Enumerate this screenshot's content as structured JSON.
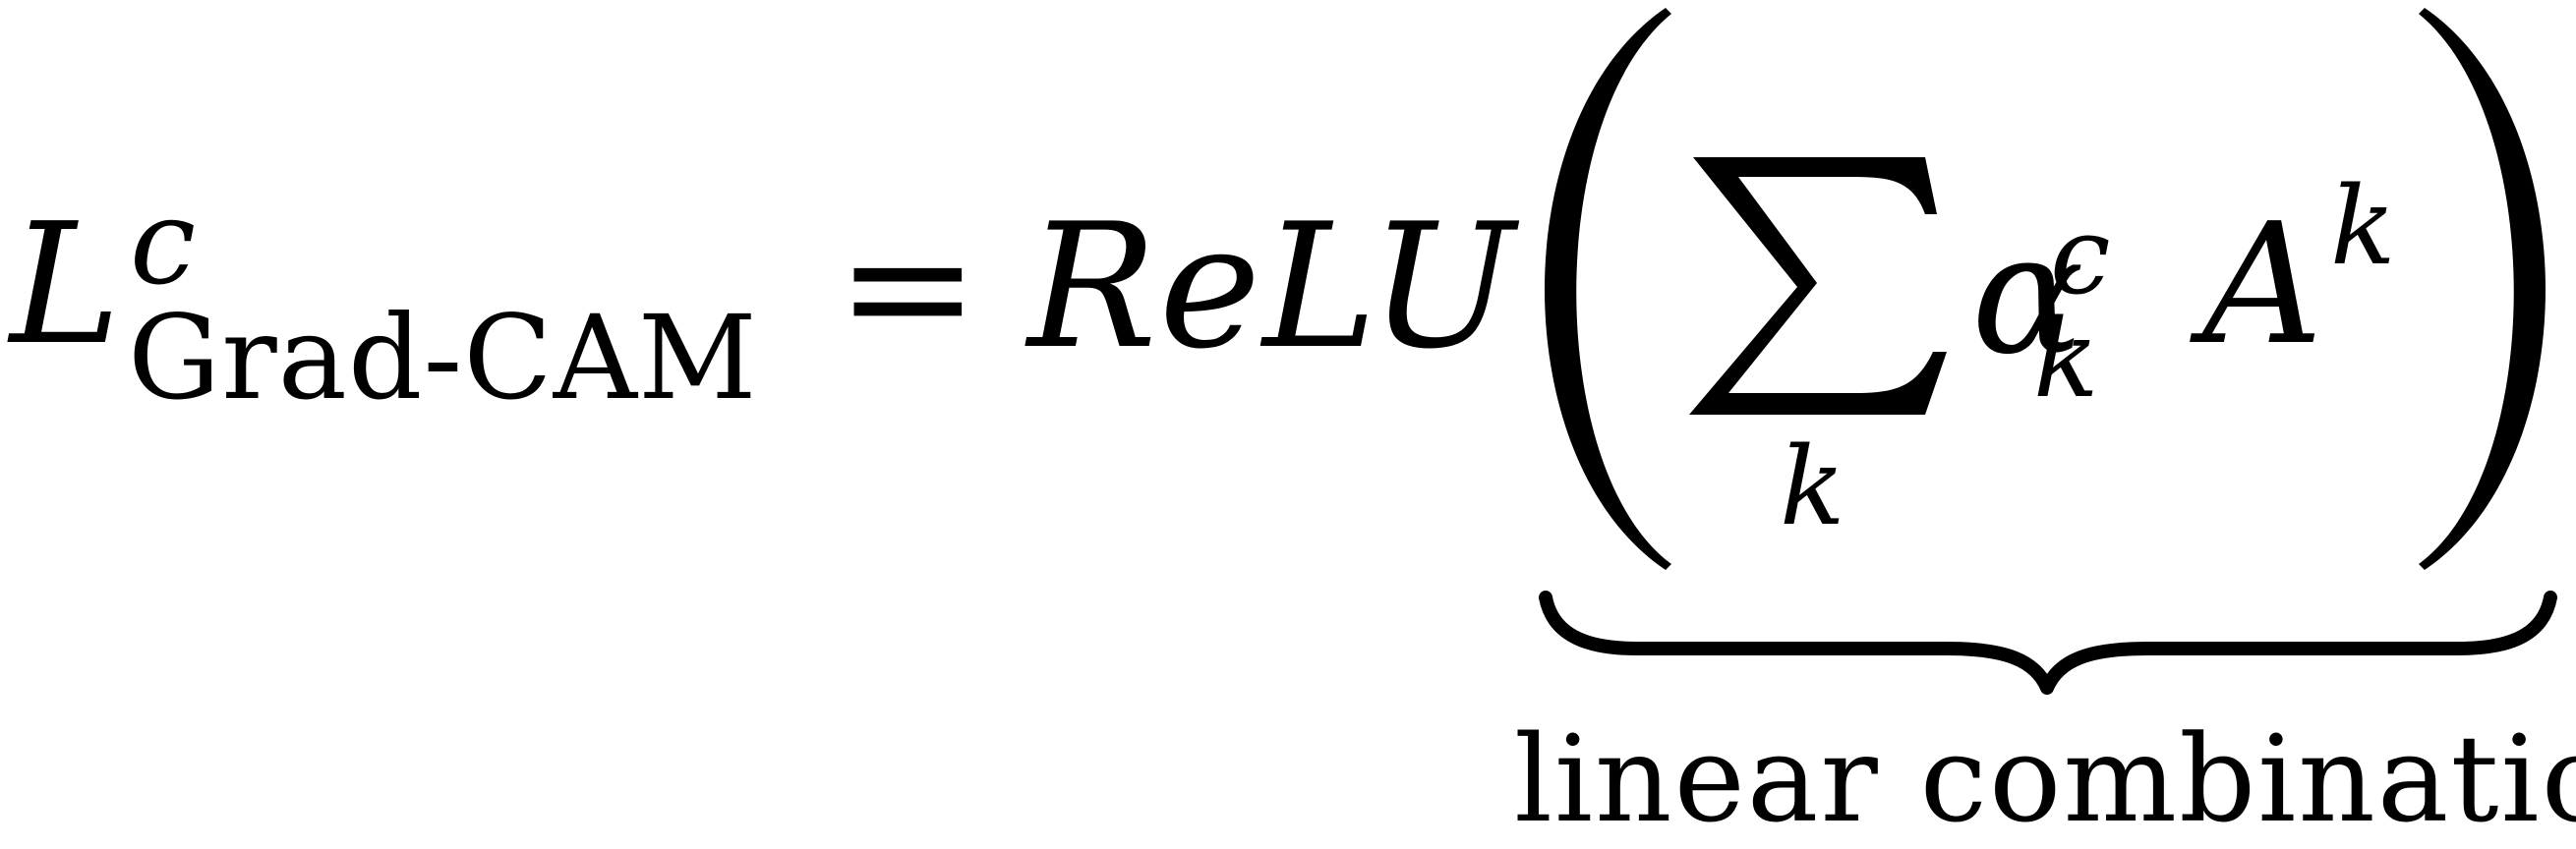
{
  "formula": {
    "lhs": {
      "symbol": "L",
      "superscript": "c",
      "subscript": "Grad-CAM"
    },
    "equals": "=",
    "function_name": "ReLU",
    "summation": {
      "operator": "∑",
      "index": "k"
    },
    "term": {
      "weight": "α",
      "weight_superscript": "c",
      "weight_subscript": "k",
      "activation": "A",
      "activation_superscript": "k"
    },
    "underbrace_label": "linear combination"
  }
}
